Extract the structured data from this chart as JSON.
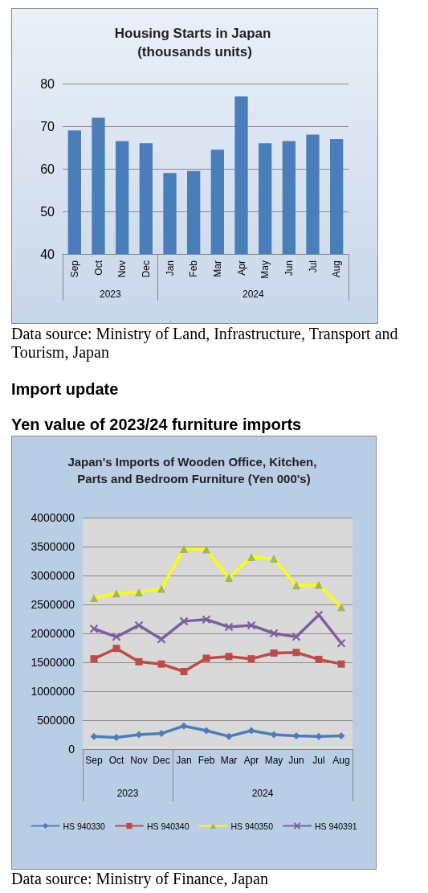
{
  "chart_data": [
    {
      "type": "bar",
      "title": "Housing Starts in Japan (thousands units)",
      "categories": [
        "Sep",
        "Oct",
        "Nov",
        "Dec",
        "Jan",
        "Feb",
        "Mar",
        "Apr",
        "May",
        "Jun",
        "Jul",
        "Aug"
      ],
      "values": [
        69,
        72,
        66.5,
        66,
        59,
        59.5,
        64.5,
        77,
        66,
        66.5,
        68,
        67
      ],
      "color": "#4a7ebb",
      "ylim": [
        40,
        80
      ],
      "yticks": [
        40,
        50,
        60,
        70,
        80
      ],
      "grid": "y",
      "annotations": [
        "2023",
        "2024",
        "Data source: Ministry of Land, Infrastructure, Transport and Tourism, Japan"
      ]
    },
    {
      "type": "line",
      "title": "Japan's Imports of Wooden Office, Kitchen, Parts and Bedroom Furniture (Yen 000's)",
      "categories": [
        "Sep",
        "Oct",
        "Nov",
        "Dec",
        "Jan",
        "Feb",
        "Mar",
        "Apr",
        "May",
        "Jun",
        "Jul",
        "Aug"
      ],
      "series": [
        {
          "name": "HS 940330",
          "color": "#4a7ebb",
          "marker": "diamond",
          "values": [
            220000,
            200000,
            250000,
            270000,
            400000,
            320000,
            220000,
            320000,
            250000,
            230000,
            220000,
            230000
          ]
        },
        {
          "name": "HS 940340",
          "color": "#be4b48",
          "marker": "square",
          "values": [
            1560000,
            1740000,
            1510000,
            1470000,
            1340000,
            1570000,
            1600000,
            1560000,
            1660000,
            1670000,
            1550000,
            1470000
          ]
        },
        {
          "name": "HS 940350",
          "color": "#ffff00",
          "colors": [
            "#9bbb59",
            "#9bbb59",
            "#9bbb59",
            "#9bbb59",
            "#9bbb59",
            "#9bbb59",
            "#9bbb59",
            "#9bbb59",
            "#9bbb59",
            "#9bbb59",
            "#9bbb59",
            "#9bbb59"
          ],
          "marker": "triangle",
          "values": [
            2610000,
            2690000,
            2710000,
            2770000,
            3460000,
            3450000,
            2960000,
            3320000,
            3290000,
            2830000,
            2840000,
            2450000
          ]
        },
        {
          "name": "HS 940391",
          "color": "#7d5fa0",
          "marker": "cross",
          "values": [
            2080000,
            1940000,
            2140000,
            1900000,
            2210000,
            2240000,
            2110000,
            2140000,
            2000000,
            1940000,
            2320000,
            1830000
          ]
        }
      ],
      "ylim": [
        0,
        4000000
      ],
      "yticks": [
        0,
        500000,
        1000000,
        1500000,
        2000000,
        2500000,
        3000000,
        3500000,
        4000000
      ],
      "grid": "y",
      "legend": "bottom",
      "annotations": [
        "Import update",
        "Yen value of 2023/24 furniture imports",
        "2023",
        "2024",
        "Data source: Ministry of Finance, Japan"
      ]
    }
  ]
}
